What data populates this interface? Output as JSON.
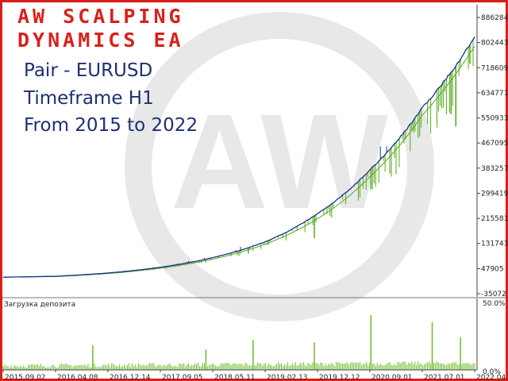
{
  "header": {
    "title_line1": "AW SCALPING",
    "title_line2": "DYNAMICS EA",
    "pair": "Pair - EURUSD",
    "timeframe": "Timeframe H1",
    "range": "From 2015 to 2022"
  },
  "watermark": {
    "text": "AW"
  },
  "colors": {
    "frame": "#d9201c",
    "balance": "#1a2f8f",
    "equity": "#54a91b",
    "load": "#6fbb2c",
    "title": "#d9201c",
    "info": "#1f2f73"
  },
  "chart_data": [
    {
      "type": "line",
      "title": "",
      "xlabel": "",
      "ylabel": "",
      "ylim": [
        -35072,
        886284
      ],
      "grid": false,
      "y_ticks": [
        "886284",
        "802443",
        "718609",
        "634771",
        "550933",
        "467095",
        "383257",
        "299419",
        "215581",
        "131743",
        "47905",
        "-35072"
      ],
      "x_ticks": [
        "2015.09.02",
        "2016.04.08",
        "2016.12.14",
        "2017.09.05",
        "2018.05.11",
        "2019.02.13",
        "2019.12.12",
        "2020.09.01",
        "2021.07.01",
        "2022.04.1"
      ],
      "series": [
        {
          "role": "balance",
          "color": "#1a2f8f",
          "x": [
            "2015.09.02",
            "2016.04.08",
            "2016.12.14",
            "2017.09.05",
            "2018.05.11",
            "2019.02.13",
            "2019.12.12",
            "2020.09.01",
            "2021.07.01",
            "2022.04.1"
          ],
          "values": [
            20000,
            23000,
            34000,
            53000,
            85000,
            138000,
            232000,
            378000,
            585000,
            820000
          ]
        },
        {
          "role": "equity",
          "color": "#54a91b",
          "x": [
            "2015.09.02",
            "2016.04.08",
            "2016.12.14",
            "2017.09.05",
            "2018.05.11",
            "2019.02.13",
            "2019.12.12",
            "2020.09.01",
            "2021.07.01",
            "2022.04.1"
          ],
          "values": [
            20000,
            22000,
            32000,
            50000,
            80000,
            130000,
            215000,
            355000,
            560000,
            790000
          ]
        }
      ]
    },
    {
      "type": "bar",
      "title": "Загрузка депозита",
      "ylim": [
        0,
        50
      ],
      "y_ticks": [
        "50.0%",
        "0.0%"
      ],
      "series_color": "#6fbb2c",
      "notable_peaks_pct": [
        18,
        15,
        22,
        20,
        40,
        35,
        24
      ]
    }
  ]
}
